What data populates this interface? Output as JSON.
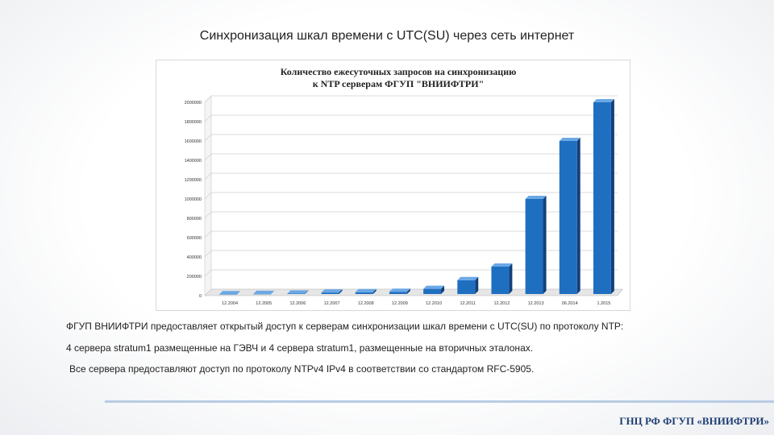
{
  "slide": {
    "title": "Синхронизация шкал времени с UTC(SU) через сеть интернет",
    "paragraphs": [
      "ФГУП ВНИИФТРИ предоставляет открытый доступ к серверам синхронизации шкал времени с UTC(SU) по протоколу NTP:",
      "4 сервера stratum1 размещенные на ГЭВЧ и 4 сервера stratum1, размещенные на вторичных эталонах.",
      "Все сервера предоставляют доступ по протоколу NTPv4 IPv4 в соответствии со стандартом   RFC-5905."
    ],
    "footer": "ГНЦ РФ ФГУП «ВНИИФТРИ»",
    "colors": {
      "bar": "#1f6fc1",
      "bar_top": "#6aa8e6",
      "bar_side": "#123f7a",
      "footer_rule": "#b8cce4",
      "footer_text": "#1f3e73"
    }
  },
  "chart_data": {
    "type": "bar",
    "title_lines": [
      "Количество ежесуточных запросов на синхронизацию",
      "к NTP  серверам ФГУП \"ВНИИФТРИ\""
    ],
    "categories": [
      "12.2004",
      "12.2005",
      "12.2006",
      "12.2007",
      "12.2008",
      "12.2009",
      "12.2010",
      "12.2011",
      "12.2012",
      "12.2013",
      "06.2014",
      "1.2015"
    ],
    "values": [
      15000,
      18000,
      22000,
      32000,
      35000,
      40000,
      70000,
      160000,
      300000,
      1000000,
      1600000,
      2000000
    ],
    "yticks": [
      "0",
      "200000",
      "400000",
      "600000",
      "800000",
      "1000000",
      "1200000",
      "1400000",
      "1600000",
      "1800000",
      "2000000"
    ],
    "ylim": [
      0,
      2000000
    ],
    "grid": true,
    "legend": "none",
    "xlabel": "",
    "ylabel": ""
  }
}
